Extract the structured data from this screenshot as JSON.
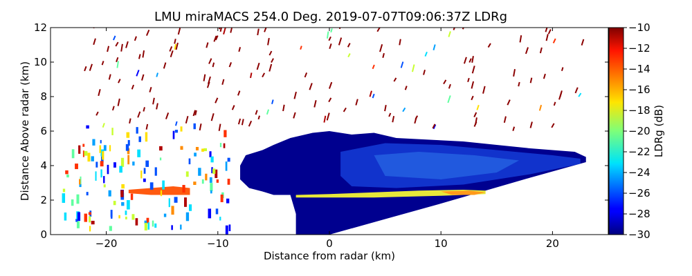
{
  "chart_data": {
    "type": "heatmap",
    "title": "LMU miraMACS 254.0 Deg. 2019-07-07T09:06:37Z  LDRg",
    "xlabel": "Distance from radar (km)",
    "ylabel": "Distance Above radar  (km)",
    "xlim": [
      -25,
      25
    ],
    "ylim": [
      0,
      12
    ],
    "x_ticks": [
      -20,
      -10,
      0,
      10,
      20
    ],
    "x_tick_labels": [
      "−20",
      "−10",
      "0",
      "10",
      "20"
    ],
    "y_ticks": [
      0,
      2,
      4,
      6,
      8,
      10,
      12
    ],
    "y_tick_labels": [
      "0",
      "2",
      "4",
      "6",
      "8",
      "10",
      "12"
    ],
    "colorbar": {
      "label": "LDRg (dB)",
      "range": [
        -30,
        -10
      ],
      "ticks": [
        -30,
        -28,
        -26,
        -24,
        -22,
        -20,
        -18,
        -16,
        -14,
        -12,
        -10
      ],
      "tick_labels": [
        "−30",
        "−28",
        "−26",
        "−24",
        "−22",
        "−20",
        "−18",
        "−16",
        "−14",
        "−12",
        "−10"
      ],
      "colormap": "jet"
    },
    "grid": false,
    "regions": [
      {
        "feature": "dense cloud core",
        "x_range": [
          -8,
          23
        ],
        "y_range": [
          0,
          6
        ],
        "ldr_db": -29
      },
      {
        "feature": "melting layer",
        "x_range": [
          -3,
          14
        ],
        "y_range": [
          2.2,
          2.6
        ],
        "ldr_db": -17
      },
      {
        "feature": "left melting layer",
        "x_range": [
          -18,
          -12
        ],
        "y_range": [
          2.2,
          2.8
        ],
        "ldr_db": -14
      },
      {
        "feature": "left mixed echoes",
        "x_range": [
          -24,
          -10
        ],
        "y_range": [
          0.5,
          6.5
        ],
        "ldr_db": -22
      },
      {
        "feature": "sparse upper echoes",
        "x_range": [
          -22,
          23
        ],
        "y_range": [
          6,
          12
        ],
        "ldr_db": -10
      }
    ]
  }
}
